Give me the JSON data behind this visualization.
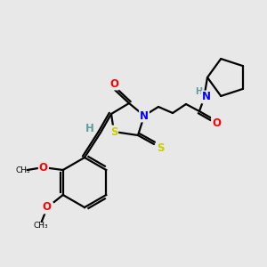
{
  "bg_color": "#e8e8e8",
  "atom_colors": {
    "H": "#5f9ea0",
    "N": "#0000ff",
    "O": "#ff0000",
    "S": "#cccc00"
  },
  "bond_color": "#000000",
  "figsize": [
    3.0,
    3.0
  ],
  "dpi": 100,
  "lw": 1.6,
  "fs": 8.5
}
